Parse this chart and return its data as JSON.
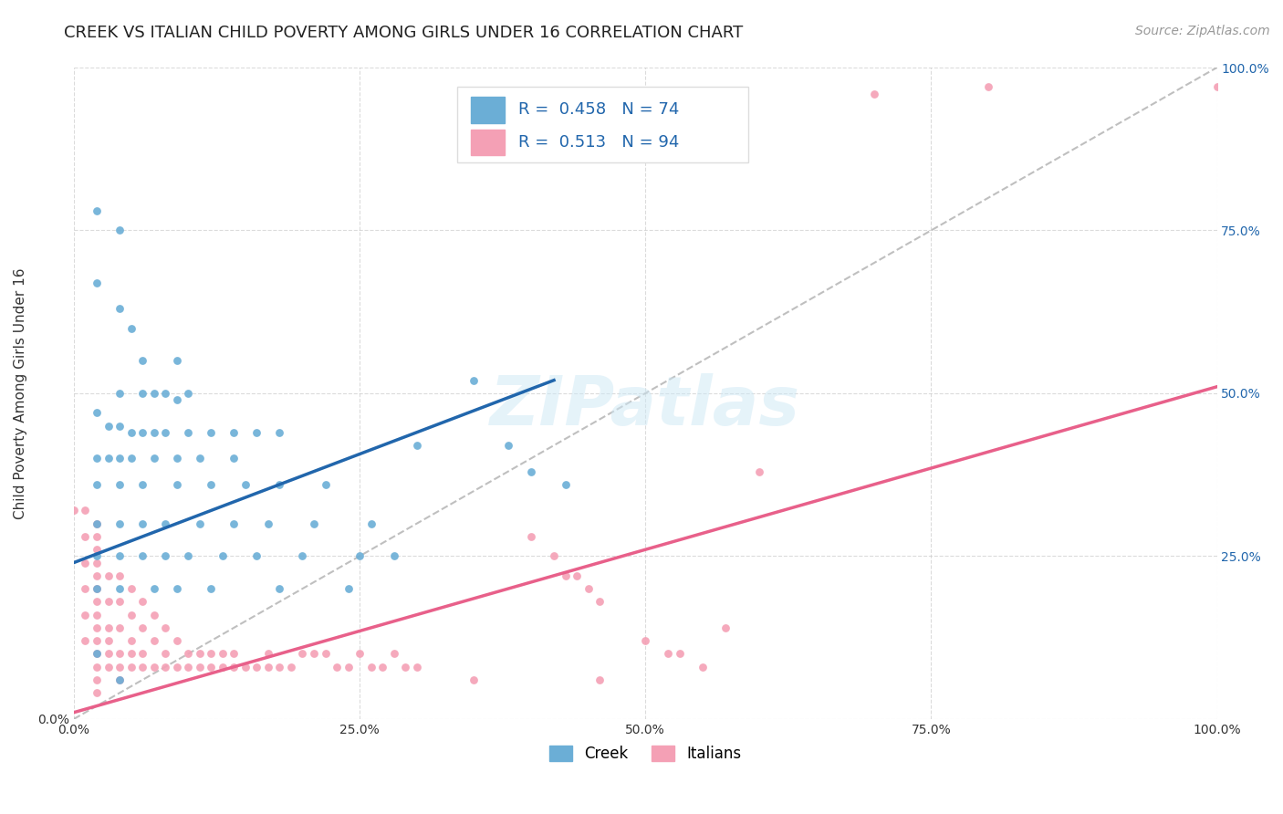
{
  "title": "CREEK VS ITALIAN CHILD POVERTY AMONG GIRLS UNDER 16 CORRELATION CHART",
  "source": "Source: ZipAtlas.com",
  "ylabel": "Child Poverty Among Girls Under 16",
  "xlim": [
    0,
    1.0
  ],
  "ylim": [
    0,
    1.0
  ],
  "xtick_labels": [
    "0.0%",
    "25.0%",
    "50.0%",
    "75.0%",
    "100.0%"
  ],
  "xtick_positions": [
    0.0,
    0.25,
    0.5,
    0.75,
    1.0
  ],
  "ytick_positions": [
    0.0,
    0.25,
    0.5,
    0.75,
    1.0
  ],
  "right_ytick_labels": [
    "25.0%",
    "50.0%",
    "75.0%",
    "100.0%"
  ],
  "right_ytick_positions": [
    0.25,
    0.5,
    0.75,
    1.0
  ],
  "creek_color": "#6baed6",
  "italian_color": "#f4a0b5",
  "creek_line_color": "#2166ac",
  "italian_line_color": "#e8608a",
  "diagonal_color": "#b0b0b0",
  "creek_R": 0.458,
  "creek_N": 74,
  "italian_R": 0.513,
  "italian_N": 94,
  "legend_creek": "Creek",
  "legend_italian": "Italians",
  "watermark": "ZIPatlas",
  "creek_scatter": [
    [
      0.02,
      0.78
    ],
    [
      0.04,
      0.75
    ],
    [
      0.02,
      0.67
    ],
    [
      0.04,
      0.63
    ],
    [
      0.05,
      0.6
    ],
    [
      0.06,
      0.55
    ],
    [
      0.09,
      0.55
    ],
    [
      0.04,
      0.5
    ],
    [
      0.06,
      0.5
    ],
    [
      0.07,
      0.5
    ],
    [
      0.08,
      0.5
    ],
    [
      0.09,
      0.49
    ],
    [
      0.1,
      0.5
    ],
    [
      0.02,
      0.47
    ],
    [
      0.03,
      0.45
    ],
    [
      0.04,
      0.45
    ],
    [
      0.05,
      0.44
    ],
    [
      0.06,
      0.44
    ],
    [
      0.07,
      0.44
    ],
    [
      0.08,
      0.44
    ],
    [
      0.1,
      0.44
    ],
    [
      0.12,
      0.44
    ],
    [
      0.14,
      0.44
    ],
    [
      0.16,
      0.44
    ],
    [
      0.18,
      0.44
    ],
    [
      0.02,
      0.4
    ],
    [
      0.03,
      0.4
    ],
    [
      0.04,
      0.4
    ],
    [
      0.05,
      0.4
    ],
    [
      0.07,
      0.4
    ],
    [
      0.09,
      0.4
    ],
    [
      0.11,
      0.4
    ],
    [
      0.14,
      0.4
    ],
    [
      0.02,
      0.36
    ],
    [
      0.04,
      0.36
    ],
    [
      0.06,
      0.36
    ],
    [
      0.09,
      0.36
    ],
    [
      0.12,
      0.36
    ],
    [
      0.15,
      0.36
    ],
    [
      0.18,
      0.36
    ],
    [
      0.22,
      0.36
    ],
    [
      0.02,
      0.3
    ],
    [
      0.04,
      0.3
    ],
    [
      0.06,
      0.3
    ],
    [
      0.08,
      0.3
    ],
    [
      0.11,
      0.3
    ],
    [
      0.14,
      0.3
    ],
    [
      0.17,
      0.3
    ],
    [
      0.21,
      0.3
    ],
    [
      0.26,
      0.3
    ],
    [
      0.02,
      0.25
    ],
    [
      0.04,
      0.25
    ],
    [
      0.06,
      0.25
    ],
    [
      0.08,
      0.25
    ],
    [
      0.1,
      0.25
    ],
    [
      0.13,
      0.25
    ],
    [
      0.16,
      0.25
    ],
    [
      0.2,
      0.25
    ],
    [
      0.25,
      0.25
    ],
    [
      0.28,
      0.25
    ],
    [
      0.02,
      0.2
    ],
    [
      0.04,
      0.2
    ],
    [
      0.07,
      0.2
    ],
    [
      0.09,
      0.2
    ],
    [
      0.12,
      0.2
    ],
    [
      0.18,
      0.2
    ],
    [
      0.24,
      0.2
    ],
    [
      0.3,
      0.42
    ],
    [
      0.35,
      0.52
    ],
    [
      0.38,
      0.42
    ],
    [
      0.4,
      0.38
    ],
    [
      0.43,
      0.36
    ],
    [
      0.02,
      0.1
    ],
    [
      0.04,
      0.06
    ]
  ],
  "italian_scatter": [
    [
      0.01,
      0.32
    ],
    [
      0.02,
      0.3
    ],
    [
      0.02,
      0.28
    ],
    [
      0.02,
      0.26
    ],
    [
      0.02,
      0.24
    ],
    [
      0.02,
      0.22
    ],
    [
      0.02,
      0.2
    ],
    [
      0.02,
      0.18
    ],
    [
      0.02,
      0.16
    ],
    [
      0.02,
      0.14
    ],
    [
      0.02,
      0.12
    ],
    [
      0.02,
      0.1
    ],
    [
      0.02,
      0.08
    ],
    [
      0.02,
      0.06
    ],
    [
      0.02,
      0.04
    ],
    [
      0.03,
      0.22
    ],
    [
      0.03,
      0.18
    ],
    [
      0.03,
      0.14
    ],
    [
      0.03,
      0.12
    ],
    [
      0.03,
      0.1
    ],
    [
      0.03,
      0.08
    ],
    [
      0.04,
      0.22
    ],
    [
      0.04,
      0.18
    ],
    [
      0.04,
      0.14
    ],
    [
      0.04,
      0.1
    ],
    [
      0.04,
      0.08
    ],
    [
      0.04,
      0.06
    ],
    [
      0.05,
      0.2
    ],
    [
      0.05,
      0.16
    ],
    [
      0.05,
      0.12
    ],
    [
      0.05,
      0.1
    ],
    [
      0.05,
      0.08
    ],
    [
      0.06,
      0.18
    ],
    [
      0.06,
      0.14
    ],
    [
      0.06,
      0.1
    ],
    [
      0.06,
      0.08
    ],
    [
      0.07,
      0.16
    ],
    [
      0.07,
      0.12
    ],
    [
      0.07,
      0.08
    ],
    [
      0.08,
      0.14
    ],
    [
      0.08,
      0.1
    ],
    [
      0.08,
      0.08
    ],
    [
      0.09,
      0.12
    ],
    [
      0.09,
      0.08
    ],
    [
      0.1,
      0.1
    ],
    [
      0.1,
      0.08
    ],
    [
      0.11,
      0.1
    ],
    [
      0.11,
      0.08
    ],
    [
      0.12,
      0.1
    ],
    [
      0.12,
      0.08
    ],
    [
      0.13,
      0.1
    ],
    [
      0.13,
      0.08
    ],
    [
      0.14,
      0.1
    ],
    [
      0.14,
      0.08
    ],
    [
      0.15,
      0.08
    ],
    [
      0.16,
      0.08
    ],
    [
      0.17,
      0.1
    ],
    [
      0.17,
      0.08
    ],
    [
      0.18,
      0.08
    ],
    [
      0.19,
      0.08
    ],
    [
      0.2,
      0.1
    ],
    [
      0.21,
      0.1
    ],
    [
      0.22,
      0.1
    ],
    [
      0.23,
      0.08
    ],
    [
      0.24,
      0.08
    ],
    [
      0.25,
      0.1
    ],
    [
      0.26,
      0.08
    ],
    [
      0.27,
      0.08
    ],
    [
      0.28,
      0.1
    ],
    [
      0.29,
      0.08
    ],
    [
      0.3,
      0.08
    ],
    [
      0.4,
      0.28
    ],
    [
      0.42,
      0.25
    ],
    [
      0.43,
      0.22
    ],
    [
      0.44,
      0.22
    ],
    [
      0.45,
      0.2
    ],
    [
      0.46,
      0.18
    ],
    [
      0.5,
      0.12
    ],
    [
      0.52,
      0.1
    ],
    [
      0.53,
      0.1
    ],
    [
      0.55,
      0.08
    ],
    [
      0.57,
      0.14
    ],
    [
      0.6,
      0.38
    ],
    [
      0.7,
      0.96
    ],
    [
      0.8,
      0.97
    ],
    [
      1.0,
      0.97
    ],
    [
      0.0,
      0.32
    ],
    [
      0.01,
      0.28
    ],
    [
      0.01,
      0.24
    ],
    [
      0.01,
      0.2
    ],
    [
      0.01,
      0.16
    ],
    [
      0.01,
      0.12
    ],
    [
      0.35,
      0.06
    ],
    [
      0.46,
      0.06
    ]
  ],
  "creek_line": [
    [
      0.0,
      0.24
    ],
    [
      0.42,
      0.52
    ]
  ],
  "italian_line": [
    [
      0.0,
      0.01
    ],
    [
      1.0,
      0.51
    ]
  ],
  "diagonal_line": [
    [
      0.0,
      0.0
    ],
    [
      1.0,
      1.0
    ]
  ],
  "title_fontsize": 13,
  "label_fontsize": 11,
  "tick_fontsize": 10,
  "legend_fontsize": 13,
  "source_fontsize": 10
}
